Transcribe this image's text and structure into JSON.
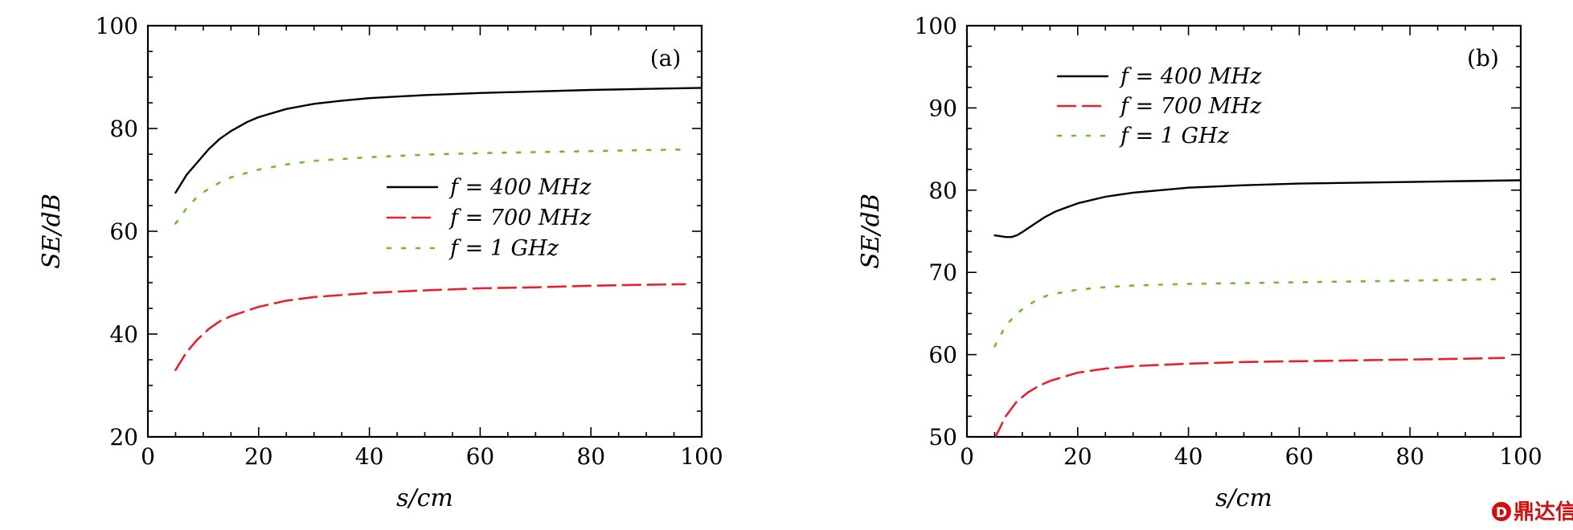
{
  "watermark": "鼎达信",
  "chart_data": [
    {
      "type": "line",
      "panel_label": "(a)",
      "xlabel": "s/cm",
      "ylabel": "SE/dB",
      "xlim": [
        0,
        100
      ],
      "ylim": [
        20,
        100
      ],
      "x_ticks": [
        "0",
        "20",
        "40",
        "60",
        "80",
        "100"
      ],
      "y_ticks": [
        "20",
        "40",
        "60",
        "80",
        "100"
      ],
      "grid": false,
      "legend_position": "center-right",
      "series": [
        {
          "name": "f = 400 MHz",
          "color": "#000000",
          "style": "solid",
          "points": [
            [
              5,
              67.5
            ],
            [
              7,
              71
            ],
            [
              9,
              73.5
            ],
            [
              11,
              76
            ],
            [
              13,
              78
            ],
            [
              15,
              79.5
            ],
            [
              18,
              81.3
            ],
            [
              20,
              82.2
            ],
            [
              25,
              83.8
            ],
            [
              30,
              84.8
            ],
            [
              35,
              85.4
            ],
            [
              40,
              85.9
            ],
            [
              50,
              86.5
            ],
            [
              60,
              86.9
            ],
            [
              70,
              87.2
            ],
            [
              80,
              87.5
            ],
            [
              90,
              87.7
            ],
            [
              100,
              87.9
            ]
          ]
        },
        {
          "name": "f = 700 MHz",
          "color": "#e8212b",
          "style": "dashed",
          "points": [
            [
              5,
              33
            ],
            [
              7,
              36.5
            ],
            [
              9,
              39
            ],
            [
              11,
              41
            ],
            [
              13,
              42.5
            ],
            [
              15,
              43.5
            ],
            [
              20,
              45.3
            ],
            [
              25,
              46.5
            ],
            [
              30,
              47.2
            ],
            [
              40,
              48
            ],
            [
              50,
              48.5
            ],
            [
              60,
              48.9
            ],
            [
              70,
              49.1
            ],
            [
              80,
              49.4
            ],
            [
              90,
              49.6
            ],
            [
              97,
              49.7
            ]
          ]
        },
        {
          "name": "f = 1 GHz",
          "color": "#6cbf2a",
          "style": "dotted",
          "points": [
            [
              5,
              61.5
            ],
            [
              7,
              64.5
            ],
            [
              9,
              66.8
            ],
            [
              11,
              68.3
            ],
            [
              13,
              69.5
            ],
            [
              15,
              70.5
            ],
            [
              20,
              72
            ],
            [
              25,
              73
            ],
            [
              30,
              73.7
            ],
            [
              40,
              74.4
            ],
            [
              50,
              74.9
            ],
            [
              60,
              75.2
            ],
            [
              70,
              75.4
            ],
            [
              80,
              75.6
            ],
            [
              90,
              75.8
            ],
            [
              97,
              75.9
            ]
          ]
        }
      ]
    },
    {
      "type": "line",
      "panel_label": "(b)",
      "xlabel": "s/cm",
      "ylabel": "SE/dB",
      "xlim": [
        0,
        100
      ],
      "ylim": [
        50,
        100
      ],
      "x_ticks": [
        "0",
        "20",
        "40",
        "60",
        "80",
        "100"
      ],
      "y_ticks": [
        "50",
        "60",
        "70",
        "80",
        "90",
        "100"
      ],
      "grid": false,
      "legend_position": "top-left",
      "series": [
        {
          "name": "f = 400 MHz",
          "color": "#000000",
          "style": "solid",
          "points": [
            [
              5,
              74.5
            ],
            [
              6,
              74.4
            ],
            [
              7,
              74.3
            ],
            [
              8,
              74.3
            ],
            [
              9,
              74.5
            ],
            [
              10,
              74.9
            ],
            [
              12,
              75.8
            ],
            [
              14,
              76.7
            ],
            [
              16,
              77.4
            ],
            [
              18,
              77.9
            ],
            [
              20,
              78.4
            ],
            [
              25,
              79.2
            ],
            [
              30,
              79.7
            ],
            [
              40,
              80.3
            ],
            [
              50,
              80.6
            ],
            [
              60,
              80.8
            ],
            [
              70,
              80.9
            ],
            [
              80,
              81
            ],
            [
              90,
              81.1
            ],
            [
              100,
              81.2
            ]
          ]
        },
        {
          "name": "f = 700 MHz",
          "color": "#e8212b",
          "style": "dashed",
          "points": [
            [
              5,
              49.8
            ],
            [
              7,
              52.5
            ],
            [
              9,
              54.3
            ],
            [
              11,
              55.4
            ],
            [
              13,
              56.2
            ],
            [
              15,
              56.8
            ],
            [
              20,
              57.8
            ],
            [
              25,
              58.3
            ],
            [
              30,
              58.6
            ],
            [
              40,
              58.9
            ],
            [
              50,
              59.1
            ],
            [
              60,
              59.2
            ],
            [
              70,
              59.3
            ],
            [
              80,
              59.4
            ],
            [
              90,
              59.5
            ],
            [
              97,
              59.6
            ]
          ]
        },
        {
          "name": "f = 1 GHz",
          "color": "#6cbf2a",
          "style": "dotted",
          "points": [
            [
              5,
              61
            ],
            [
              7,
              63.5
            ],
            [
              9,
              65
            ],
            [
              11,
              66
            ],
            [
              13,
              66.8
            ],
            [
              15,
              67.3
            ],
            [
              20,
              67.9
            ],
            [
              25,
              68.2
            ],
            [
              30,
              68.4
            ],
            [
              40,
              68.6
            ],
            [
              50,
              68.7
            ],
            [
              60,
              68.8
            ],
            [
              70,
              68.9
            ],
            [
              80,
              69
            ],
            [
              90,
              69.1
            ],
            [
              97,
              69.2
            ]
          ]
        }
      ]
    }
  ]
}
